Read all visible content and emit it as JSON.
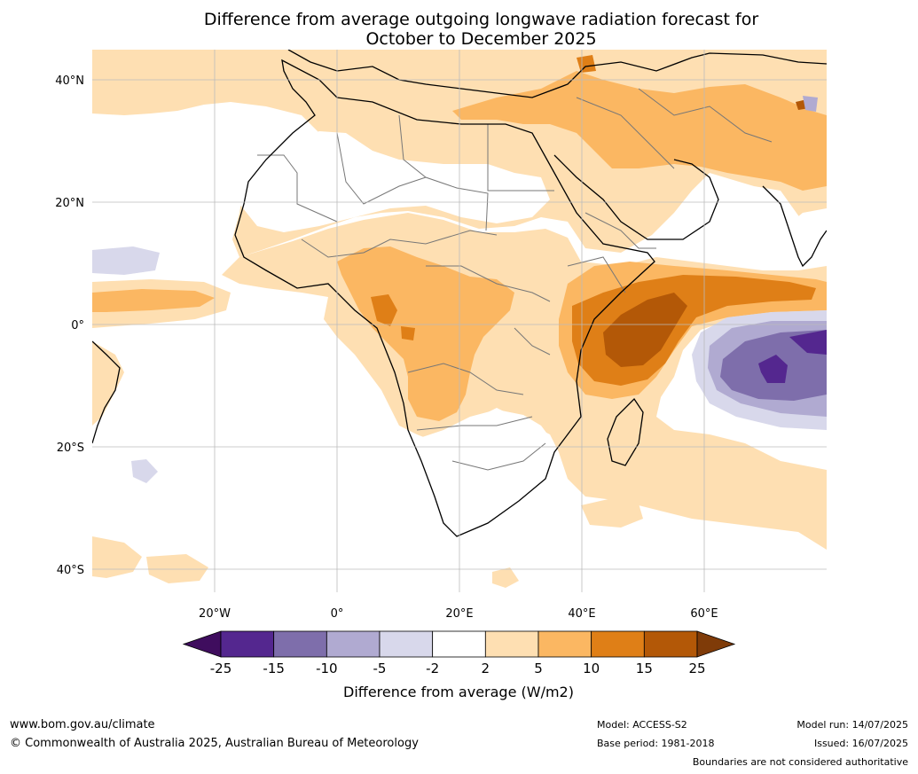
{
  "title": {
    "line1": "Difference from average outgoing longwave radiation forecast for",
    "line2": "October to December 2025"
  },
  "map": {
    "lat_labels": [
      "40°N",
      "20°N",
      "0°",
      "20°S",
      "40°S"
    ],
    "lon_labels": [
      "20°W",
      "0°",
      "20°E",
      "40°E",
      "60°E"
    ]
  },
  "colorbar": {
    "ticks": [
      "-25",
      "-15",
      "-10",
      "-5",
      "-2",
      "2",
      "5",
      "10",
      "15",
      "25"
    ],
    "colors": [
      "#3f0d5e",
      "#54278f",
      "#7e6eab",
      "#b0aad1",
      "#d8d8eb",
      "#ffffff",
      "#fedfb2",
      "#fbb762",
      "#df7f17",
      "#b35807",
      "#7f3b08"
    ],
    "label": "Difference from average (W/m2)"
  },
  "footer": {
    "url": "www.bom.gov.au/climate",
    "copyright": "© Commonwealth of Australia 2025, Australian Bureau of Meteorology",
    "model": "Model: ACCESS-S2",
    "base_period": "Base period: 1981-2018",
    "model_run": "Model run: 14/07/2025",
    "issued": "Issued: 16/07/2025",
    "disclaimer": "Boundaries are not considered authoritative"
  }
}
